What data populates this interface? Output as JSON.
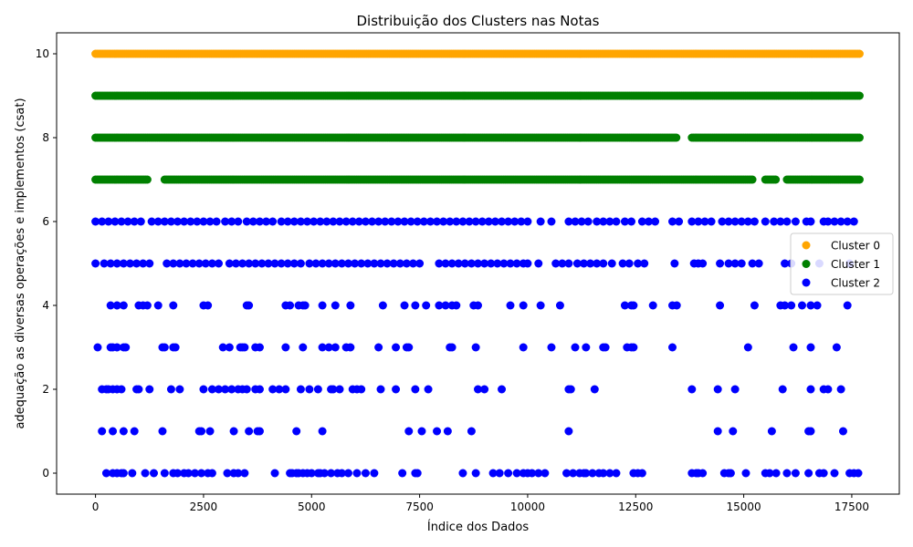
{
  "chart_data": {
    "type": "scatter",
    "title": "Distribuição dos Clusters nas Notas",
    "xlabel": "Índice dos Dados",
    "ylabel": "adequação as diversas operações e implementos (csat)",
    "xlim": [
      -900,
      18600
    ],
    "ylim": [
      -0.5,
      10.5
    ],
    "xticks": [
      0,
      2500,
      5000,
      7500,
      10000,
      12500,
      15000,
      17500
    ],
    "yticks": [
      0,
      2,
      4,
      6,
      8,
      10
    ],
    "grid": false,
    "legend_position": "center-right",
    "series": [
      {
        "name": "Cluster 0",
        "color": "#ffa500",
        "points": [
          {
            "level": 10,
            "ranges": [
              [
                0,
                17700
              ]
            ]
          }
        ]
      },
      {
        "name": "Cluster 1",
        "color": "#008000",
        "points": [
          {
            "level": 9,
            "ranges": [
              [
                0,
                17700
              ]
            ]
          },
          {
            "level": 8,
            "ranges": [
              [
                0,
                13450
              ],
              [
                13800,
                17700
              ]
            ]
          },
          {
            "level": 7,
            "ranges": [
              [
                0,
                1200
              ],
              [
                1600,
                15200
              ],
              [
                15500,
                15750
              ],
              [
                16000,
                17700
              ]
            ]
          }
        ]
      },
      {
        "name": "Cluster 2",
        "color": "#0000ff",
        "points": [
          {
            "level": 6,
            "x": [
              0,
              150,
              300,
              450,
              600,
              750,
              900,
              1050,
              1300,
              1450,
              1600,
              1750,
              1900,
              2050,
              2200,
              2350,
              2500,
              2650,
              2800,
              3000,
              3150,
              3300,
              3500,
              3650,
              3800,
              3950,
              4100,
              4300,
              4450,
              4600,
              4750,
              4900,
              5050,
              5200,
              5350,
              5500,
              5650,
              5800,
              5950,
              6100,
              6250,
              6400,
              6550,
              6700,
              6850,
              7000,
              7150,
              7300,
              7450,
              7600,
              7750,
              7900,
              8050,
              8200,
              8350,
              8500,
              8650,
              8800,
              8950,
              9100,
              9250,
              9400,
              9550,
              9700,
              9850,
              10000,
              10300,
              10550,
              10950,
              11100,
              11250,
              11400,
              11600,
              11750,
              11900,
              12050,
              12250,
              12400,
              12650,
              12800,
              12950,
              13350,
              13500,
              13800,
              13950,
              14100,
              14250,
              14500,
              14650,
              14800,
              14950,
              15100,
              15250,
              15500,
              15700,
              15850,
              16000,
              16200,
              16450,
              16550,
              16850,
              16950,
              17100,
              17250,
              17400,
              17550
            ]
          },
          {
            "level": 5,
            "x": [
              0,
              200,
              350,
              500,
              650,
              800,
              950,
              1100,
              1250,
              1650,
              1800,
              1950,
              2100,
              2250,
              2400,
              2550,
              2700,
              2850,
              3100,
              3250,
              3400,
              3550,
              3700,
              3850,
              4000,
              4150,
              4300,
              4450,
              4600,
              4750,
              4950,
              5100,
              5250,
              5400,
              5550,
              5700,
              5850,
              6000,
              6150,
              6300,
              6450,
              6600,
              6750,
              6900,
              7050,
              7200,
              7350,
              7500,
              7950,
              8100,
              8250,
              8400,
              8550,
              8700,
              8850,
              9000,
              9150,
              9300,
              9450,
              9600,
              9750,
              9900,
              10000,
              10250,
              10650,
              10800,
              10950,
              11150,
              11300,
              11450,
              11600,
              11750,
              11950,
              12200,
              12350,
              12550,
              12700,
              13400,
              13850,
              13950,
              14050,
              14450,
              14650,
              14800,
              14950,
              15200,
              15350,
              15950,
              16100,
              16450,
              16750,
              17450
            ]
          },
          {
            "level": 4,
            "x": [
              350,
              500,
              650,
              1000,
              1100,
              1200,
              1450,
              1800,
              2500,
              2600,
              3500,
              3550,
              4400,
              4500,
              4700,
              4800,
              4850,
              5250,
              5550,
              5900,
              6650,
              7150,
              7400,
              7650,
              7950,
              8100,
              8250,
              8350,
              8750,
              8850,
              9600,
              9900,
              10300,
              10750,
              12250,
              12400,
              12450,
              12900,
              13350,
              13450,
              14450,
              15250,
              15850,
              15950,
              16100,
              16350,
              16550,
              16700,
              17400
            ]
          },
          {
            "level": 3,
            "x": [
              50,
              350,
              400,
              500,
              650,
              700,
              1550,
              1600,
              1800,
              1850,
              2950,
              3100,
              3350,
              3400,
              3450,
              3700,
              3800,
              4400,
              4800,
              5250,
              5400,
              5550,
              5800,
              5900,
              6550,
              6950,
              7200,
              7250,
              8200,
              8250,
              8800,
              9900,
              10550,
              11100,
              11350,
              11750,
              11800,
              12300,
              12400,
              12450,
              13350,
              15100,
              16150,
              16550,
              17150
            ]
          },
          {
            "level": 2,
            "x": [
              150,
              250,
              300,
              400,
              500,
              600,
              950,
              1000,
              1250,
              1750,
              1950,
              2500,
              2700,
              2850,
              3000,
              3150,
              3300,
              3400,
              3500,
              3700,
              3800,
              4100,
              4250,
              4400,
              4750,
              4950,
              5150,
              5450,
              5500,
              5650,
              5950,
              6050,
              6150,
              6600,
              6950,
              7400,
              7700,
              8850,
              9000,
              9400,
              10950,
              11000,
              11550,
              13800,
              14400,
              14800,
              15900,
              16550,
              16850,
              16950,
              17250
            ]
          },
          {
            "level": 1,
            "x": [
              150,
              400,
              650,
              900,
              1550,
              2400,
              2450,
              2650,
              3200,
              3550,
              3750,
              3800,
              4650,
              5250,
              7250,
              7550,
              7900,
              8150,
              8700,
              10950,
              14400,
              14750,
              15650,
              16500,
              16550,
              17300
            ]
          },
          {
            "level": 0,
            "x": [
              250,
              400,
              500,
              600,
              650,
              850,
              1150,
              1350,
              1600,
              1800,
              1900,
              2050,
              2150,
              2300,
              2450,
              2600,
              2700,
              3050,
              3200,
              3300,
              3450,
              4150,
              4500,
              4550,
              4650,
              4700,
              4800,
              4900,
              5000,
              5150,
              5200,
              5300,
              5450,
              5600,
              5700,
              5850,
              6050,
              6250,
              6450,
              7100,
              7400,
              7450,
              8500,
              8800,
              9200,
              9350,
              9550,
              9750,
              9900,
              10000,
              10100,
              10250,
              10400,
              10900,
              11050,
              11200,
              11300,
              11350,
              11500,
              11650,
              11750,
              11900,
              12050,
              12450,
              12550,
              12650,
              13800,
              13900,
              13950,
              14050,
              14550,
              14650,
              14700,
              15050,
              15500,
              15600,
              15750,
              16000,
              16200,
              16500,
              16750,
              16850,
              17100,
              17450,
              17550,
              17650
            ]
          }
        ]
      }
    ]
  }
}
